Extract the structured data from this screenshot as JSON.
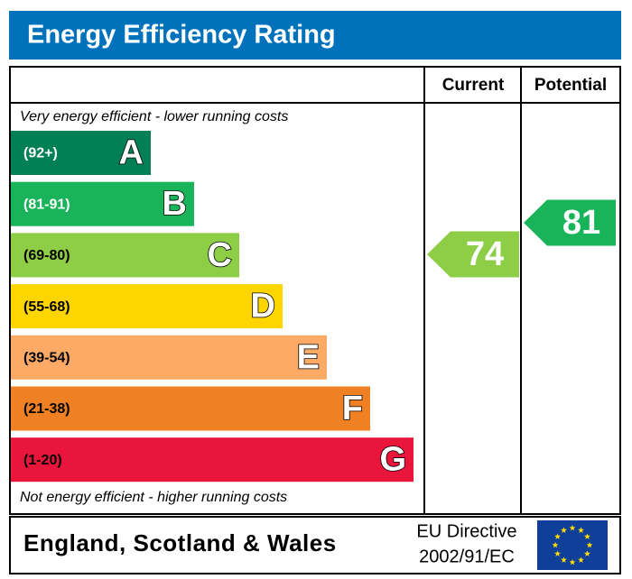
{
  "header": {
    "title": "Energy Efficiency Rating"
  },
  "columns": [
    "Current",
    "Potential"
  ],
  "top_note": "Very energy efficient - lower running costs",
  "bottom_note": "Not energy efficient - higher running costs",
  "bands": [
    {
      "range": "(92+)",
      "letter": "A",
      "color": "#008054",
      "text_color": "#ffffff"
    },
    {
      "range": "(81-91)",
      "letter": "B",
      "color": "#19b459",
      "text_color": "#ffffff"
    },
    {
      "range": "(69-80)",
      "letter": "C",
      "color": "#8dce46",
      "text_color": "#000000"
    },
    {
      "range": "(55-68)",
      "letter": "D",
      "color": "#ffd500",
      "text_color": "#000000"
    },
    {
      "range": "(39-54)",
      "letter": "E",
      "color": "#fcaa65",
      "text_color": "#000000"
    },
    {
      "range": "(21-38)",
      "letter": "F",
      "color": "#ef8023",
      "text_color": "#000000"
    },
    {
      "range": "(1-20)",
      "letter": "G",
      "color": "#e9153b",
      "text_color": "#000000"
    }
  ],
  "current": {
    "value": 74,
    "color": "#8dce46"
  },
  "potential": {
    "value": 81,
    "color": "#19b459"
  },
  "footer": {
    "region": "England, Scotland & Wales",
    "directive": [
      "EU Directive",
      "2002/91/EC"
    ]
  }
}
